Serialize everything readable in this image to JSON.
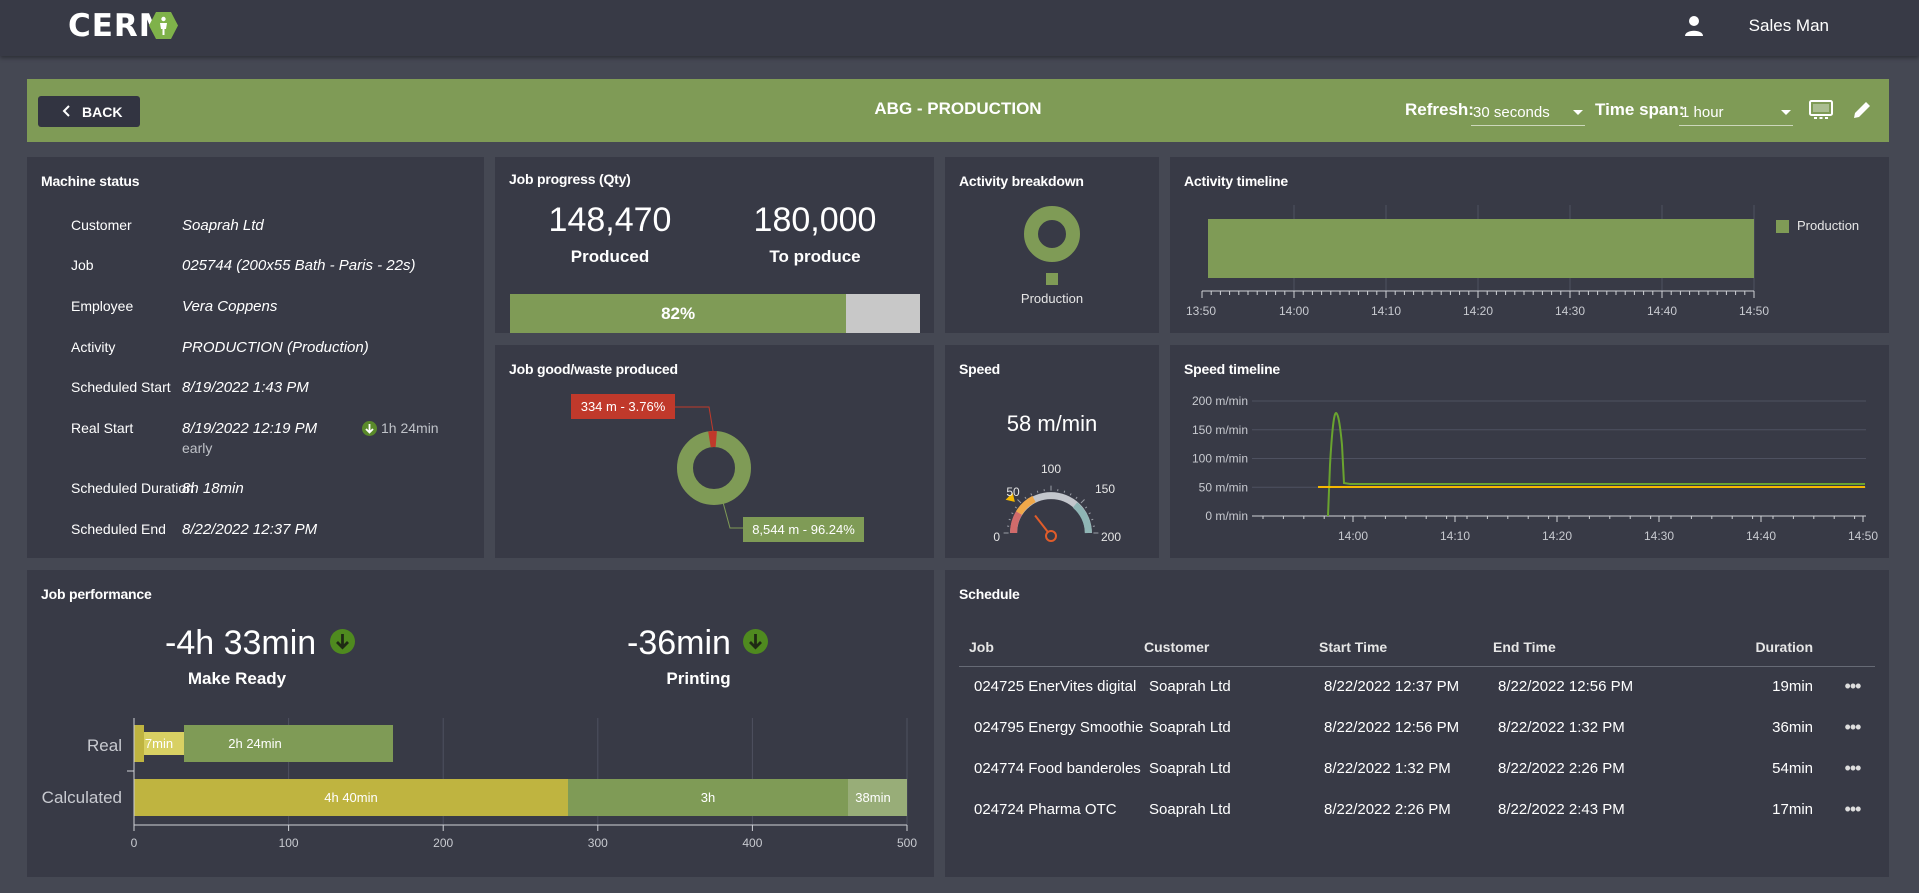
{
  "app": {
    "logo": "CERM",
    "user_name": "Sales Man"
  },
  "header": {
    "back_label": "BACK",
    "title": "ABG - PRODUCTION",
    "refresh_label": "Refresh:",
    "refresh_value": "30 seconds",
    "timespan_label": "Time span:",
    "timespan_value": "1 hour"
  },
  "colors": {
    "accent": "#7f9b56",
    "card": "#383a46",
    "bg": "#454853",
    "yellow": "#bfb440",
    "waste": "#c0392b",
    "speed_line": "#f5b800"
  },
  "machine_status": {
    "title": "Machine status",
    "rows": [
      {
        "label": "Customer",
        "value": "Soaprah Ltd"
      },
      {
        "label": "Job",
        "value": "025744 (200x55 Bath - Paris - 22s)"
      },
      {
        "label": "Employee",
        "value": "Vera Coppens"
      },
      {
        "label": "Activity",
        "value": "PRODUCTION (Production)"
      },
      {
        "label": "Scheduled Start",
        "value": "8/19/2022 1:43 PM"
      },
      {
        "label": "Real Start",
        "value": "8/19/2022 12:19 PM",
        "badge": "1h 24min",
        "note": "early"
      },
      {
        "label": "Scheduled Duration",
        "value": "8h 18min"
      },
      {
        "label": "Scheduled End",
        "value": "8/22/2022 12:37 PM"
      }
    ]
  },
  "job_progress": {
    "title": "Job progress (Qty)",
    "produced": "148,470",
    "produced_label": "Produced",
    "to_produce": "180,000",
    "to_produce_label": "To produce",
    "percent": 82,
    "percent_label": "82%"
  },
  "activity_breakdown": {
    "title": "Activity breakdown",
    "legend": "Production"
  },
  "activity_timeline": {
    "title": "Activity timeline",
    "legend": "Production",
    "ticks": [
      "13:50",
      "14:00",
      "14:10",
      "14:20",
      "14:30",
      "14:40",
      "14:50"
    ]
  },
  "good_waste": {
    "title": "Job good/waste produced",
    "waste_label": "334 m - 3.76%",
    "good_label": "8,544 m - 96.24%",
    "waste_pct": 3.76,
    "good_pct": 96.24
  },
  "speed": {
    "title": "Speed",
    "value_label": "58 m/min",
    "value": 58,
    "gauge_max": 200,
    "gauge_ticks": [
      "0",
      "50",
      "100",
      "150",
      "200"
    ]
  },
  "speed_timeline": {
    "title": "Speed timeline",
    "y_ticks": [
      "200 m/min",
      "150 m/min",
      "100 m/min",
      "50 m/min",
      "0 m/min"
    ],
    "x_ticks": [
      "14:00",
      "14:10",
      "14:20",
      "14:30",
      "14:40",
      "14:50"
    ]
  },
  "job_performance": {
    "title": "Job performance",
    "make_ready_value": "-4h 33min",
    "make_ready_label": "Make Ready",
    "printing_value": "-36min",
    "printing_label": "Printing",
    "rows": [
      "Real",
      "Calculated"
    ],
    "real_segments": [
      "7min",
      "2h 24min"
    ],
    "calc_segments": [
      "4h 40min",
      "3h",
      "38min"
    ],
    "x_ticks": [
      "0",
      "100",
      "200",
      "300",
      "400",
      "500"
    ]
  },
  "schedule": {
    "title": "Schedule",
    "columns": [
      "Job",
      "Customer",
      "Start Time",
      "End Time",
      "Duration"
    ],
    "rows": [
      {
        "job": "024725  EnerVites digital",
        "customer": "Soaprah Ltd",
        "start": "8/22/2022 12:37 PM",
        "end": "8/22/2022 12:56 PM",
        "duration": "19min",
        "more": "•••"
      },
      {
        "job": "024795  Energy Smoothie",
        "customer": "Soaprah Ltd",
        "start": "8/22/2022 12:56 PM",
        "end": "8/22/2022 1:32 PM",
        "duration": "36min",
        "more": "•••"
      },
      {
        "job": "024774  Food banderoles",
        "customer": "Soaprah Ltd",
        "start": "8/22/2022 1:32 PM",
        "end": "8/22/2022 2:26 PM",
        "duration": "54min",
        "more": "•••"
      },
      {
        "job": "024724  Pharma OTC",
        "customer": "Soaprah Ltd",
        "start": "8/22/2022 2:26 PM",
        "end": "8/22/2022 2:43 PM",
        "duration": "17min",
        "more": "•••"
      }
    ]
  }
}
